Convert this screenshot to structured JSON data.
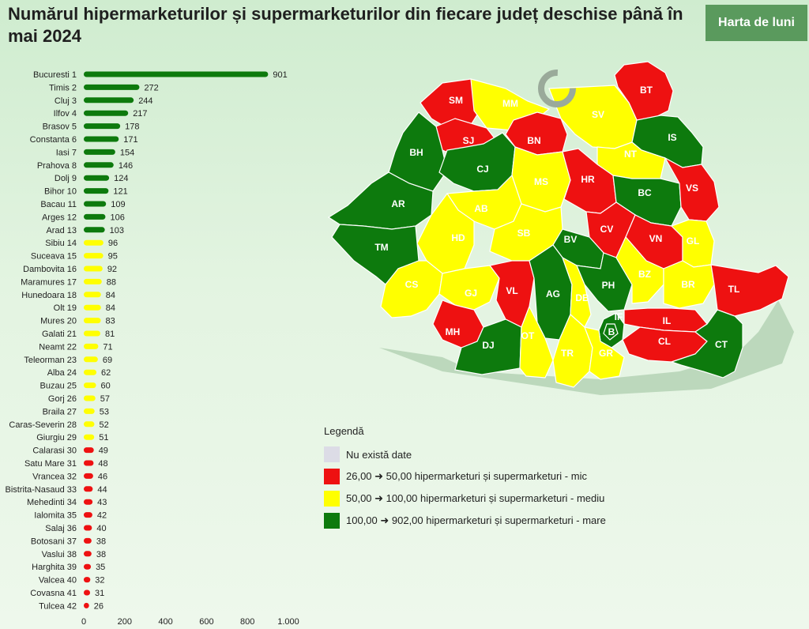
{
  "header": {
    "title": "Numărul hipermarketurilor și supermarketurilor din fiecare județ deschise până în mai 2024",
    "brand": "Harta de luni"
  },
  "colors": {
    "green": "#0d7a0d",
    "yellow": "#ffff00",
    "red": "#ee1111",
    "nodata": "#dcdce6"
  },
  "chart_data": {
    "type": "bar",
    "orientation": "horizontal",
    "categories": [
      "Bucuresti 1",
      "Timis 2",
      "Cluj 3",
      "Ilfov 4",
      "Brasov 5",
      "Constanta 6",
      "Iasi 7",
      "Prahova 8",
      "Dolj 9",
      "Bihor 10",
      "Bacau 11",
      "Arges 12",
      "Arad 13",
      "Sibiu 14",
      "Suceava 15",
      "Dambovita 16",
      "Maramures 17",
      "Hunedoara 18",
      "Olt 19",
      "Mures 20",
      "Galati 21",
      "Neamt 22",
      "Teleorman 23",
      "Alba 24",
      "Buzau 25",
      "Gorj 26",
      "Braila 27",
      "Caras-Severin 28",
      "Giurgiu 29",
      "Calarasi 30",
      "Satu Mare 31",
      "Vrancea 32",
      "Bistrita-Nasaud 33",
      "Mehedinti 34",
      "Ialomita 35",
      "Salaj 36",
      "Botosani 37",
      "Vaslui 38",
      "Harghita 39",
      "Valcea 40",
      "Covasna 41",
      "Tulcea 42"
    ],
    "values": [
      901,
      272,
      244,
      217,
      178,
      171,
      154,
      146,
      124,
      121,
      109,
      106,
      103,
      96,
      95,
      92,
      88,
      84,
      84,
      83,
      81,
      71,
      69,
      62,
      60,
      57,
      53,
      52,
      51,
      49,
      48,
      46,
      44,
      43,
      42,
      40,
      38,
      38,
      35,
      32,
      31,
      26
    ],
    "x_ticks": [
      "0",
      "200",
      "400",
      "600",
      "800",
      "1.000"
    ],
    "xlim": [
      0,
      1000
    ],
    "legend_placement": "bottom-right",
    "map_labels": [
      "SM",
      "MM",
      "BT",
      "SV",
      "SJ",
      "BN",
      "IS",
      "BH",
      "CJ",
      "NT",
      "MS",
      "HR",
      "BC",
      "VS",
      "AR",
      "AB",
      "HD",
      "SB",
      "CV",
      "VN",
      "GL",
      "TM",
      "BV",
      "CS",
      "GJ",
      "VL",
      "AG",
      "DB",
      "PH",
      "BZ",
      "BR",
      "TL",
      "IF",
      "B",
      "IL",
      "MH",
      "DJ",
      "OT",
      "TR",
      "GR",
      "CL",
      "CT"
    ],
    "map_categories": [
      "red",
      "yellow",
      "red",
      "yellow",
      "red",
      "red",
      "green",
      "green",
      "green",
      "yellow",
      "yellow",
      "red",
      "green",
      "red",
      "green",
      "yellow",
      "yellow",
      "yellow",
      "red",
      "red",
      "yellow",
      "green",
      "green",
      "yellow",
      "yellow",
      "red",
      "green",
      "yellow",
      "green",
      "yellow",
      "yellow",
      "red",
      "green",
      "green",
      "red",
      "red",
      "green",
      "yellow",
      "yellow",
      "yellow",
      "red",
      "green"
    ]
  },
  "legend": {
    "title": "Legendă",
    "items": [
      {
        "label": "Nu există date",
        "color": "#dcdce6"
      },
      {
        "label": "26,00 ➜ 50,00 hipermarketuri și supermarketuri - mic",
        "color": "#ee1111"
      },
      {
        "label": "50,00 ➜ 100,00 hipermarketuri și supermarketuri - mediu",
        "color": "#ffff00"
      },
      {
        "label": "100,00 ➜ 902,00 hipermarketuri și supermarketuri - mare",
        "color": "#0d7a0d"
      }
    ]
  }
}
